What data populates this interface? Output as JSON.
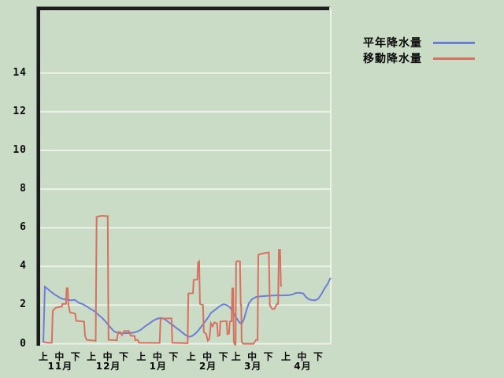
{
  "window": {
    "description": "precipitation line chart",
    "background_color": "#cadcc6",
    "grid_color": "#ecf2e8",
    "axis_frame_color": "#1c1c1c",
    "text_color": "#0b0b0b"
  },
  "chart_data": {
    "type": "line",
    "title": "",
    "xlabel": "",
    "ylabel": "",
    "grid": true,
    "legend_position": "top-right",
    "yticks": [
      0,
      2,
      4,
      6,
      8,
      10,
      12,
      14
    ],
    "ylim": [
      0,
      17.3
    ],
    "x_unit": "days from Nov 1; each month split into ten-day periods",
    "period_labels": [
      "上",
      "中",
      "下"
    ],
    "period_day_offsets": [
      0,
      10,
      20
    ],
    "months": [
      {
        "label": "11月",
        "start_day": 0
      },
      {
        "label": "12月",
        "start_day": 30
      },
      {
        "label": "1月",
        "start_day": 61
      },
      {
        "label": "2月",
        "start_day": 92
      },
      {
        "label": "3月",
        "start_day": 120
      },
      {
        "label": "4月",
        "start_day": 151
      }
    ],
    "series": [
      {
        "name": "平年降水量",
        "color": "#6c7ed8",
        "points": [
          [
            0,
            0.05
          ],
          [
            1,
            2.95
          ],
          [
            2.5,
            2.85
          ],
          [
            3.9,
            2.75
          ],
          [
            5.4,
            2.65
          ],
          [
            7.4,
            2.53
          ],
          [
            8.8,
            2.46
          ],
          [
            10.3,
            2.38
          ],
          [
            12.3,
            2.31
          ],
          [
            14.7,
            2.28
          ],
          [
            17.2,
            2.25
          ],
          [
            19.6,
            2.27
          ],
          [
            22.1,
            2.12
          ],
          [
            24.5,
            2.05
          ],
          [
            27,
            1.93
          ],
          [
            29.4,
            1.8
          ],
          [
            31.9,
            1.68
          ],
          [
            34.3,
            1.5
          ],
          [
            36.8,
            1.32
          ],
          [
            39.2,
            1.1
          ],
          [
            41.7,
            0.85
          ],
          [
            44.1,
            0.63
          ],
          [
            46.6,
            0.56
          ],
          [
            49,
            0.54
          ],
          [
            51.5,
            0.55
          ],
          [
            53.9,
            0.55
          ],
          [
            56.4,
            0.58
          ],
          [
            58.8,
            0.64
          ],
          [
            61.3,
            0.76
          ],
          [
            63.7,
            0.92
          ],
          [
            66.2,
            1.06
          ],
          [
            68.6,
            1.2
          ],
          [
            71.1,
            1.3
          ],
          [
            73,
            1.34
          ],
          [
            75,
            1.3
          ],
          [
            77,
            1.18
          ],
          [
            78.9,
            1.06
          ],
          [
            80.9,
            0.95
          ],
          [
            82.8,
            0.82
          ],
          [
            84.8,
            0.7
          ],
          [
            86.8,
            0.56
          ],
          [
            88.7,
            0.44
          ],
          [
            90.7,
            0.36
          ],
          [
            92.6,
            0.4
          ],
          [
            94.6,
            0.52
          ],
          [
            96.6,
            0.7
          ],
          [
            98.5,
            0.9
          ],
          [
            100.5,
            1.12
          ],
          [
            102.5,
            1.35
          ],
          [
            104.4,
            1.6
          ],
          [
            106.4,
            1.72
          ],
          [
            108.3,
            1.85
          ],
          [
            110.3,
            1.97
          ],
          [
            112.3,
            2.05
          ],
          [
            114.2,
            2.0
          ],
          [
            116.2,
            1.88
          ],
          [
            118.1,
            1.65
          ],
          [
            120.1,
            1.35
          ],
          [
            122.1,
            1.1
          ],
          [
            123.5,
            1.02
          ],
          [
            125,
            1.3
          ],
          [
            126.5,
            1.75
          ],
          [
            128,
            2.1
          ],
          [
            129.9,
            2.3
          ],
          [
            132.4,
            2.42
          ],
          [
            134.8,
            2.45
          ],
          [
            139.7,
            2.48
          ],
          [
            144.6,
            2.5
          ],
          [
            149.5,
            2.5
          ],
          [
            153.4,
            2.52
          ],
          [
            155.4,
            2.56
          ],
          [
            156.9,
            2.62
          ],
          [
            159.3,
            2.64
          ],
          [
            161.8,
            2.6
          ],
          [
            163.2,
            2.45
          ],
          [
            165.2,
            2.3
          ],
          [
            167.2,
            2.26
          ],
          [
            169.1,
            2.25
          ],
          [
            171.1,
            2.32
          ],
          [
            173,
            2.55
          ],
          [
            175,
            2.85
          ],
          [
            177,
            3.1
          ],
          [
            178.4,
            3.35
          ],
          [
            178.9,
            3.4
          ]
        ]
      },
      {
        "name": "移動降水量",
        "color": "#d7705f",
        "points": [
          [
            0,
            0.1
          ],
          [
            2.5,
            0.05
          ],
          [
            5.3,
            0.05
          ],
          [
            5.9,
            1.7
          ],
          [
            7.5,
            1.85
          ],
          [
            9.5,
            1.9
          ],
          [
            11.6,
            1.92
          ],
          [
            11.9,
            2.06
          ],
          [
            14.1,
            2.06
          ],
          [
            14.5,
            2.87
          ],
          [
            15.2,
            2.87
          ],
          [
            15.6,
            2.05
          ],
          [
            16.6,
            1.62
          ],
          [
            19.8,
            1.56
          ],
          [
            20.5,
            1.18
          ],
          [
            25.4,
            1.15
          ],
          [
            26,
            0.4
          ],
          [
            27,
            0.2
          ],
          [
            32.6,
            0.15
          ],
          [
            33.2,
            6.56
          ],
          [
            36,
            6.62
          ],
          [
            40.1,
            6.6
          ],
          [
            40.6,
            0.2
          ],
          [
            45.8,
            0.18
          ],
          [
            46.5,
            0.6
          ],
          [
            47.9,
            0.6
          ],
          [
            48.9,
            0.45
          ],
          [
            50.4,
            0.66
          ],
          [
            53.4,
            0.65
          ],
          [
            54.3,
            0.42
          ],
          [
            56.8,
            0.4
          ],
          [
            57.3,
            0.18
          ],
          [
            58.8,
            0.2
          ],
          [
            59.6,
            0.05
          ],
          [
            72.4,
            0.04
          ],
          [
            73,
            1.3
          ],
          [
            79.8,
            1.31
          ],
          [
            80.3,
            0.05
          ],
          [
            89.8,
            0.03
          ],
          [
            90.3,
            2.6
          ],
          [
            93.2,
            2.62
          ],
          [
            93.6,
            3.3
          ],
          [
            95.9,
            3.32
          ],
          [
            96.3,
            4.2
          ],
          [
            97,
            4.26
          ],
          [
            97.5,
            2.06
          ],
          [
            99.4,
            2.0
          ],
          [
            99.9,
            0.6
          ],
          [
            101.4,
            0.5
          ],
          [
            102.4,
            0.16
          ],
          [
            103.4,
            0.26
          ],
          [
            104.3,
            1.06
          ],
          [
            105.4,
            0.9
          ],
          [
            106.4,
            1.1
          ],
          [
            108.2,
            1.05
          ],
          [
            108.7,
            0.4
          ],
          [
            109.8,
            0.44
          ],
          [
            110.2,
            1.15
          ],
          [
            114.1,
            1.17
          ],
          [
            114.6,
            0.5
          ],
          [
            115.6,
            0.53
          ],
          [
            116.1,
            1.15
          ],
          [
            117.2,
            1.16
          ],
          [
            117.6,
            2.86
          ],
          [
            118.2,
            2.86
          ],
          [
            118.6,
            0.1
          ],
          [
            119.2,
            -0.04
          ],
          [
            119.7,
            -0.04
          ],
          [
            120,
            4.2
          ],
          [
            120.4,
            4.27
          ],
          [
            122.4,
            4.27
          ],
          [
            122.9,
            2.0
          ],
          [
            123.2,
            2.0
          ],
          [
            123.5,
            0.1
          ],
          [
            124.4,
            0.0
          ],
          [
            130.9,
            0.0
          ],
          [
            132.4,
            0.2
          ],
          [
            133.4,
            0.2
          ],
          [
            133.8,
            4.6
          ],
          [
            136,
            4.66
          ],
          [
            140.4,
            4.72
          ],
          [
            141,
            2.0
          ],
          [
            142.4,
            1.8
          ],
          [
            143.9,
            1.8
          ],
          [
            145.4,
            2.06
          ],
          [
            146.2,
            2.06
          ],
          [
            146.6,
            4.86
          ],
          [
            147.4,
            4.86
          ],
          [
            147.9,
            3.0
          ],
          [
            148.5,
            3.0
          ]
        ]
      }
    ]
  }
}
